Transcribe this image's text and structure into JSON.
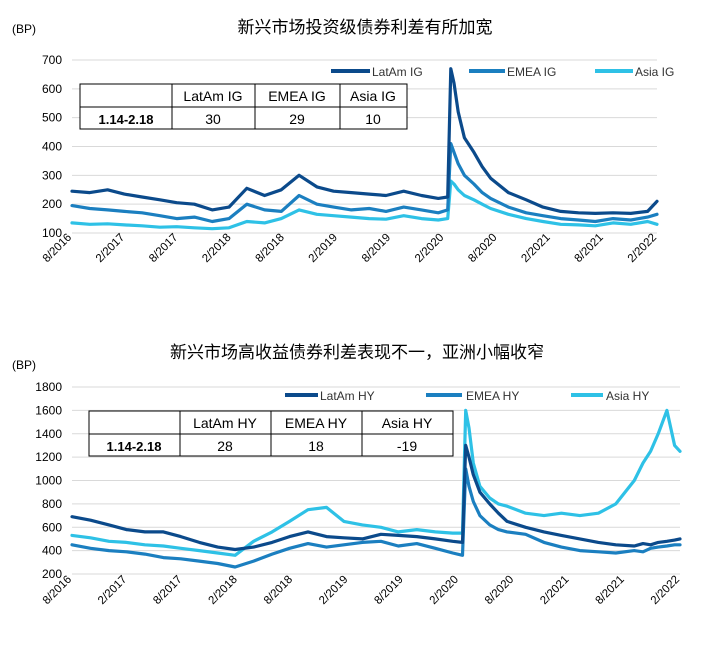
{
  "colors": {
    "latam": "#0b4a8b",
    "emea": "#1b7fc0",
    "asia": "#2ec1e6"
  },
  "chart_data": [
    {
      "type": "line",
      "title": "新兴市场投资级债券利差有所加宽",
      "unit": "(BP)",
      "ylim": [
        100,
        700
      ],
      "yticks": [
        "100",
        "200",
        "300",
        "400",
        "500",
        "600",
        "700"
      ],
      "x_tick_labels": [
        "8/2016",
        "2/2017",
        "8/2017",
        "2/2018",
        "8/2018",
        "2/2019",
        "8/2019",
        "2/2020",
        "8/2020",
        "2/2021",
        "8/2021",
        "2/2022"
      ],
      "xlim": [
        2016.58,
        2022.17
      ],
      "legend_position": "top-right",
      "x": [
        2016.58,
        2016.75,
        2016.92,
        2017.08,
        2017.25,
        2017.42,
        2017.58,
        2017.75,
        2017.92,
        2018.08,
        2018.25,
        2018.42,
        2018.58,
        2018.75,
        2018.92,
        2019.08,
        2019.25,
        2019.42,
        2019.58,
        2019.75,
        2019.92,
        2020.08,
        2020.17,
        2020.2,
        2020.23,
        2020.27,
        2020.33,
        2020.42,
        2020.5,
        2020.58,
        2020.75,
        2020.92,
        2021.08,
        2021.25,
        2021.42,
        2021.58,
        2021.75,
        2021.92,
        2022.08,
        2022.17
      ],
      "series": [
        {
          "name": "LatAm IG",
          "key": "latam",
          "values": [
            245,
            240,
            250,
            235,
            225,
            215,
            205,
            200,
            180,
            190,
            255,
            230,
            250,
            300,
            260,
            245,
            240,
            235,
            230,
            245,
            230,
            220,
            225,
            670,
            620,
            520,
            430,
            380,
            330,
            290,
            240,
            215,
            190,
            175,
            170,
            168,
            170,
            168,
            175,
            210
          ]
        },
        {
          "name": "EMEA IG",
          "key": "emea",
          "values": [
            195,
            185,
            180,
            175,
            170,
            160,
            150,
            155,
            140,
            150,
            200,
            180,
            175,
            230,
            200,
            190,
            180,
            185,
            175,
            190,
            180,
            170,
            180,
            410,
            380,
            340,
            300,
            270,
            240,
            220,
            190,
            170,
            160,
            150,
            145,
            140,
            150,
            145,
            155,
            165
          ]
        },
        {
          "name": "Asia IG",
          "key": "asia",
          "values": [
            135,
            130,
            132,
            128,
            125,
            120,
            122,
            118,
            115,
            118,
            140,
            135,
            150,
            180,
            165,
            160,
            155,
            150,
            148,
            160,
            150,
            145,
            150,
            280,
            270,
            250,
            230,
            215,
            200,
            185,
            165,
            150,
            140,
            130,
            128,
            125,
            135,
            130,
            140,
            130
          ]
        }
      ],
      "table": {
        "headers": [
          "",
          "LatAm IG",
          "EMEA IG",
          "Asia IG"
        ],
        "row": [
          "1.14-2.18",
          "30",
          "29",
          "10"
        ]
      }
    },
    {
      "type": "line",
      "title": "新兴市场高收益债券利差表现不一，亚洲小幅收窄",
      "unit": "(BP)",
      "ylim": [
        200,
        1800
      ],
      "yticks": [
        "200",
        "400",
        "600",
        "800",
        "1000",
        "1200",
        "1400",
        "1600",
        "1800"
      ],
      "x_tick_labels": [
        "8/2016",
        "2/2017",
        "8/2017",
        "2/2018",
        "8/2018",
        "2/2019",
        "8/2019",
        "2/2020",
        "8/2020",
        "2/2021",
        "8/2021",
        "2/2022"
      ],
      "xlim": [
        2016.58,
        2022.17
      ],
      "legend_position": "top-right",
      "x": [
        2016.58,
        2016.75,
        2016.92,
        2017.08,
        2017.25,
        2017.42,
        2017.58,
        2017.75,
        2017.92,
        2018.08,
        2018.25,
        2018.42,
        2018.58,
        2018.75,
        2018.92,
        2019.08,
        2019.25,
        2019.42,
        2019.58,
        2019.75,
        2019.92,
        2020.08,
        2020.17,
        2020.2,
        2020.23,
        2020.27,
        2020.33,
        2020.42,
        2020.5,
        2020.58,
        2020.75,
        2020.92,
        2021.08,
        2021.25,
        2021.42,
        2021.58,
        2021.75,
        2021.83,
        2021.9,
        2021.97,
        2022.05,
        2022.12,
        2022.17
      ],
      "series": [
        {
          "name": "LatAm HY",
          "key": "latam",
          "values": [
            690,
            660,
            620,
            580,
            560,
            560,
            520,
            470,
            430,
            410,
            430,
            470,
            520,
            560,
            520,
            510,
            500,
            540,
            530,
            520,
            500,
            480,
            470,
            1300,
            1200,
            1050,
            900,
            800,
            720,
            650,
            600,
            560,
            530,
            500,
            470,
            450,
            440,
            460,
            450,
            470,
            480,
            490,
            500
          ]
        },
        {
          "name": "EMEA HY",
          "key": "emea",
          "values": [
            450,
            420,
            400,
            390,
            370,
            340,
            330,
            310,
            290,
            260,
            310,
            370,
            420,
            460,
            430,
            450,
            470,
            480,
            440,
            460,
            420,
            380,
            360,
            1100,
            950,
            820,
            700,
            620,
            580,
            560,
            540,
            470,
            430,
            400,
            390,
            380,
            400,
            390,
            420,
            430,
            440,
            450,
            450
          ]
        },
        {
          "name": "Asia HY",
          "key": "asia",
          "values": [
            530,
            510,
            480,
            470,
            450,
            440,
            420,
            400,
            380,
            360,
            480,
            560,
            650,
            750,
            770,
            650,
            620,
            600,
            560,
            580,
            560,
            550,
            550,
            1600,
            1450,
            1150,
            950,
            850,
            800,
            780,
            720,
            700,
            720,
            700,
            720,
            800,
            1000,
            1150,
            1250,
            1400,
            1600,
            1300,
            1250
          ]
        }
      ],
      "table": {
        "headers": [
          "",
          "LatAm HY",
          "EMEA HY",
          "Asia HY"
        ],
        "row": [
          "1.14-2.18",
          "28",
          "18",
          "-19"
        ]
      }
    }
  ]
}
